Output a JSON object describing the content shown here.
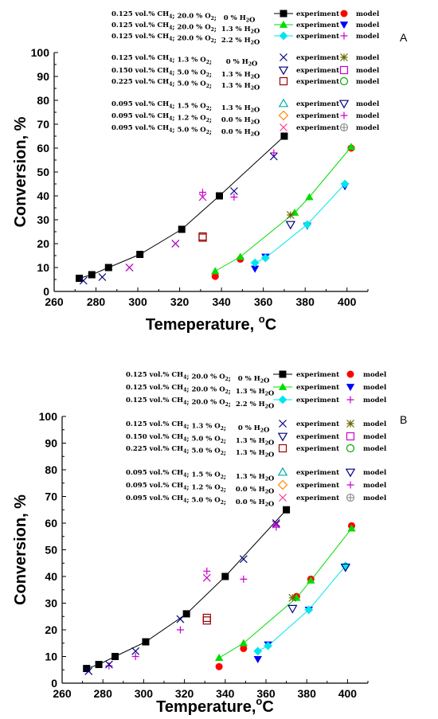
{
  "chart_data": [
    {
      "panel_label": "A",
      "type": "scatter",
      "xlabel": "Temepérature, °C",
      "xlabel_parts": {
        "main": "Temeperature, ",
        "sup": "o",
        "after": "C"
      },
      "ylabel": "Conversion, %",
      "xlim": [
        260,
        410
      ],
      "ylim": [
        0,
        100
      ],
      "xticks": [
        "260",
        "280",
        "300",
        "320",
        "340",
        "360",
        "380",
        "400"
      ],
      "yticks": [
        "0",
        "10",
        "20",
        "30",
        "40",
        "50",
        "60",
        "70",
        "80",
        "90",
        "100"
      ],
      "legend_rows": [
        {
          "cond": "0.125 vol.% CH4; 20.0 % O2;   0 % H2O",
          "exp_label": "experiment",
          "model_label": "model"
        },
        {
          "cond": "0.125 vol.% CH4; 20.0 % O2;  1.3 % H2O",
          "exp_label": "experiment",
          "model_label": "model"
        },
        {
          "cond": "0.125 vol.% CH4; 20.0 % O2;  2.2 % H2O",
          "exp_label": "experiment",
          "model_label": "model"
        },
        {
          "cond": "0.125 vol.% CH4; 1.3 % O2;      0 % H2O",
          "exp_label": "experiment",
          "model_label": "model"
        },
        {
          "cond": "0.150 vol.% CH4; 5.0 % O2;    1.3 % H2O",
          "exp_label": "experiment",
          "model_label": "model"
        },
        {
          "cond": "0.225 vol.% CH4; 5.0 % O2;    1.3 % H2O",
          "exp_label": "experiment",
          "model_label": "model"
        },
        {
          "cond": "0.095 vol.% CH4; 1.5 % O2;    1.3 % H2O",
          "exp_label": "experiment",
          "model_label": "model"
        },
        {
          "cond": "0.095 vol.% CH4; 1.2 % O2;    0.0 % H2O",
          "exp_label": "experiment",
          "model_label": "model"
        },
        {
          "cond": "0.095 vol.% CH4; 5.0 % O2;    0.0 % H2O",
          "exp_label": "experiment",
          "model_label": "model"
        }
      ],
      "series": [
        {
          "marker": "square",
          "color": "#000000",
          "line": true,
          "points": [
            [
              272,
              5.5
            ],
            [
              278,
              7
            ],
            [
              286,
              10
            ],
            [
              301,
              15.5
            ],
            [
              321,
              26
            ],
            [
              339,
              40
            ],
            [
              370,
              65
            ]
          ]
        },
        {
          "marker": "circle",
          "color": "#ff0000",
          "points": [
            [
              337,
              6.3
            ],
            [
              349,
              13.5
            ],
            [
              402,
              60
            ]
          ]
        },
        {
          "marker": "triangle",
          "color": "#00dd00",
          "line": true,
          "points": [
            [
              337,
              8.5
            ],
            [
              349,
              14.5
            ],
            [
              375,
              33
            ],
            [
              382,
              39.5
            ],
            [
              402,
              60.5
            ]
          ]
        },
        {
          "marker": "triangle-down",
          "color": "#0000ff",
          "points": [
            [
              356,
              9.5
            ],
            [
              361,
              14.5
            ],
            [
              381,
              27.5
            ],
            [
              399,
              44
            ]
          ]
        },
        {
          "marker": "diamond",
          "color": "#00e5ee",
          "line": true,
          "points": [
            [
              356,
              12
            ],
            [
              361,
              14
            ],
            [
              381,
              28
            ],
            [
              399,
              45
            ]
          ]
        },
        {
          "marker": "plus",
          "color": "#cc00cc",
          "points": [
            [
              331,
              41.5
            ],
            [
              346,
              39.5
            ],
            [
              365,
              58
            ]
          ]
        },
        {
          "marker": "x",
          "color": "#000080",
          "points": [
            [
              274,
              4.5
            ],
            [
              283,
              6
            ],
            [
              296,
              10
            ],
            [
              318,
              20
            ],
            [
              346,
              42
            ],
            [
              365,
              56.5
            ]
          ]
        },
        {
          "marker": "asterisk",
          "color": "#666600",
          "points": [
            [
              373,
              32
            ]
          ]
        },
        {
          "marker": "square-open",
          "color": "#990000",
          "points": [
            [
              331,
              22.5
            ],
            [
              331,
              23
            ]
          ]
        },
        {
          "marker": "triangle-down-open",
          "color": "#000080",
          "points": [
            [
              373,
              28
            ]
          ]
        },
        {
          "marker": "x",
          "color": "#cc00cc",
          "points": [
            [
              296,
              10
            ],
            [
              318,
              20
            ],
            [
              331,
              39.5
            ]
          ]
        }
      ]
    },
    {
      "panel_label": "B",
      "type": "scatter",
      "xlabel": "Temperature, °C",
      "xlabel_parts": {
        "main": "Temperature,",
        "sup": "o",
        "after": "C"
      },
      "ylabel": "Conversion, %",
      "xlim": [
        260,
        410
      ],
      "ylim": [
        0,
        100
      ],
      "xticks": [
        "260",
        "280",
        "300",
        "320",
        "340",
        "360",
        "380",
        "400"
      ],
      "yticks": [
        "0",
        "10",
        "20",
        "30",
        "40",
        "50",
        "60",
        "70",
        "80",
        "90",
        "100"
      ],
      "legend_rows": [
        {
          "cond": "0.125 vol.% CH4; 20.0 % O2;   0 % H2O",
          "exp_label": "experiment",
          "model_label": "model"
        },
        {
          "cond": "0.125 vol.% CH4; 20.0 % O2;  1.3 % H2O",
          "exp_label": "experiment",
          "model_label": "model"
        },
        {
          "cond": "0.125 vol.% CH4; 20.0 % O2;  2.2 % H2O",
          "exp_label": "experiment",
          "model_label": "model"
        },
        {
          "cond": "0.125 vol.% CH4; 1.3 % O2;     0 % H2O",
          "exp_label": "experiment",
          "model_label": "model"
        },
        {
          "cond": "0.150 vol.% CH4; 5.0 % O2;    1.3 % H2O",
          "exp_label": "experiment",
          "model_label": "model"
        },
        {
          "cond": "0.225 vol.% CH4; 5.0 % O2;    1.3 % H2O",
          "exp_label": "experiment",
          "model_label": "model"
        },
        {
          "cond": "0.095 vol.% CH4; 1.5 % O2;    1.3 % H2O",
          "exp_label": "experiment",
          "model_label": "model"
        },
        {
          "cond": "0.095 vol.% CH4; 1.2 % O2;    0.0 % H2O",
          "exp_label": "experiment",
          "model_label": "model"
        },
        {
          "cond": "0.095 vol.% CH4; 5.0 % O2;    0.0 % H2O",
          "exp_label": "experiment",
          "model_label": "model"
        }
      ],
      "series": [
        {
          "marker": "square",
          "color": "#000000",
          "line": true,
          "points": [
            [
              272,
              5.5
            ],
            [
              278,
              7
            ],
            [
              286,
              10
            ],
            [
              301,
              15.5
            ],
            [
              321,
              26
            ],
            [
              340,
              40
            ],
            [
              370,
              65
            ]
          ]
        },
        {
          "marker": "circle",
          "color": "#ff0000",
          "points": [
            [
              337,
              6.2
            ],
            [
              349,
              13
            ],
            [
              375,
              32.5
            ],
            [
              382,
              39
            ],
            [
              402,
              59
            ]
          ]
        },
        {
          "marker": "triangle",
          "color": "#00dd00",
          "line": true,
          "points": [
            [
              337,
              9.5
            ],
            [
              349,
              15
            ],
            [
              375,
              32
            ],
            [
              382,
              38.5
            ],
            [
              402,
              58
            ]
          ]
        },
        {
          "marker": "triangle-down",
          "color": "#0000ff",
          "points": [
            [
              356,
              9
            ],
            [
              361,
              14.5
            ],
            [
              381,
              27.5
            ],
            [
              399,
              43.5
            ]
          ]
        },
        {
          "marker": "diamond",
          "color": "#00e5ee",
          "line": true,
          "points": [
            [
              356,
              12
            ],
            [
              361,
              14
            ],
            [
              381,
              27.5
            ],
            [
              399,
              44
            ]
          ]
        },
        {
          "marker": "plus",
          "color": "#cc00cc",
          "points": [
            [
              283,
              6.5
            ],
            [
              296,
              10
            ],
            [
              318,
              20
            ],
            [
              331,
              42
            ],
            [
              349,
              39
            ],
            [
              365,
              58.5
            ]
          ]
        },
        {
          "marker": "x",
          "color": "#000080",
          "points": [
            [
              273,
              4.5
            ],
            [
              283,
              7
            ],
            [
              296,
              12
            ],
            [
              318,
              24
            ],
            [
              349,
              46.5
            ],
            [
              365,
              60
            ]
          ]
        },
        {
          "marker": "asterisk",
          "color": "#666600",
          "points": [
            [
              373,
              32
            ]
          ]
        },
        {
          "marker": "square-open",
          "color": "#990000",
          "points": [
            [
              331,
              23.5
            ],
            [
              331,
              24.5
            ]
          ]
        },
        {
          "marker": "triangle-down-open",
          "color": "#000080",
          "points": [
            [
              373,
              28
            ],
            [
              399,
              43.5
            ]
          ]
        },
        {
          "marker": "x",
          "color": "#cc00cc",
          "points": [
            [
              331,
              39.5
            ],
            [
              365,
              59.5
            ]
          ]
        }
      ]
    }
  ]
}
